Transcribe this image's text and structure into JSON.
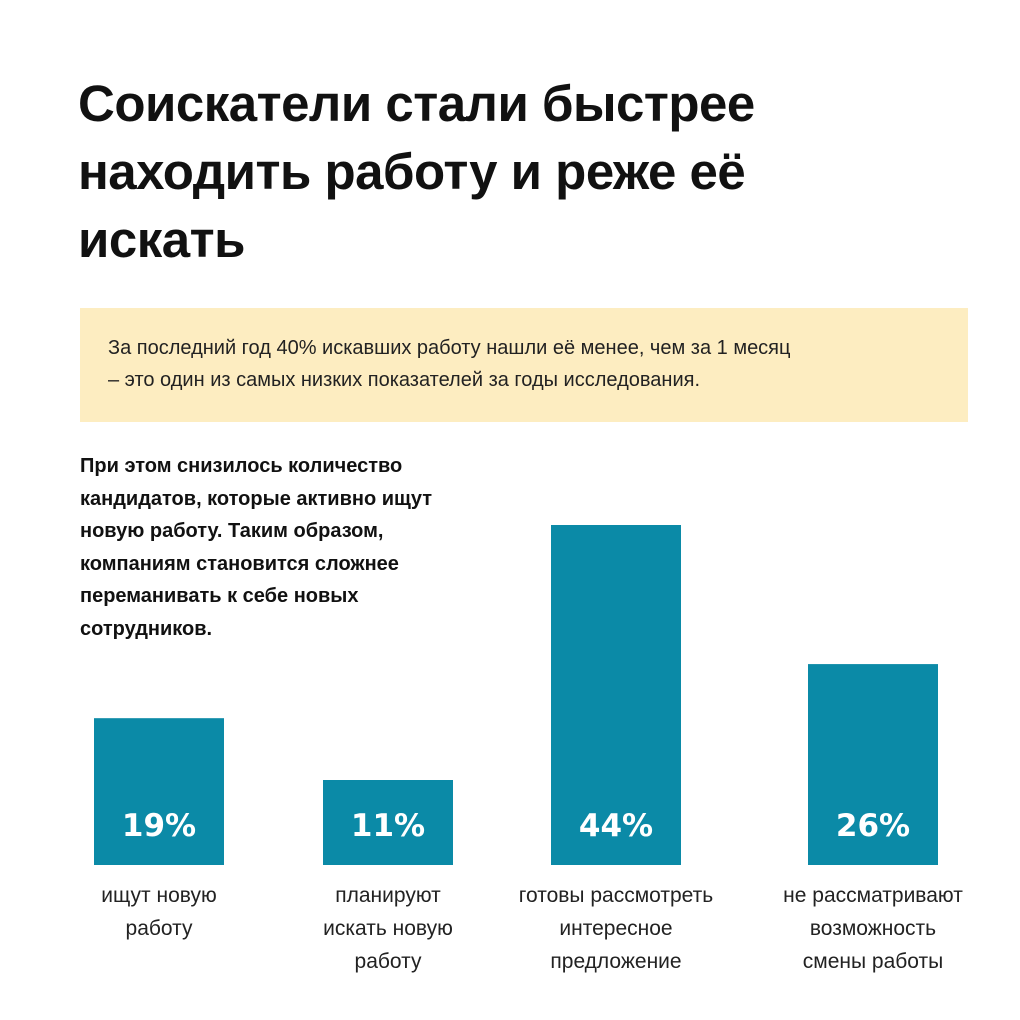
{
  "title_lines": [
    "Соискатели стали быстрее",
    "находить работу и реже её",
    "искать"
  ],
  "callout_lines": [
    "За последний год 40% искавших работу нашли её менее, чем за 1 месяц",
    "– это один из самых низких показателей за годы исследования."
  ],
  "note_lines": [
    "При этом снизилось количество",
    "кандидатов, которые активно ищут",
    "новую работу. Таким образом,",
    "компаниям становится сложнее",
    "переманивать к себе новых",
    "сотрудников."
  ],
  "colors": {
    "bar": "#0b8aa7",
    "callout_bg": "#fdedc1",
    "text": "#111111"
  },
  "chart_data": {
    "type": "bar",
    "categories": [
      [
        "ищут новую",
        "работу"
      ],
      [
        "планируют",
        "искать новую",
        "работу"
      ],
      [
        "готовы рассмотреть",
        "интересное",
        "предложение"
      ],
      [
        "не рассматривают",
        "возможность",
        "смены работы"
      ]
    ],
    "values": [
      19,
      11,
      44,
      26
    ],
    "value_labels": [
      "19%",
      "11%",
      "44%",
      "26%"
    ],
    "unit": "%",
    "ylim": [
      0,
      44
    ],
    "grid": false,
    "legend": "none"
  }
}
